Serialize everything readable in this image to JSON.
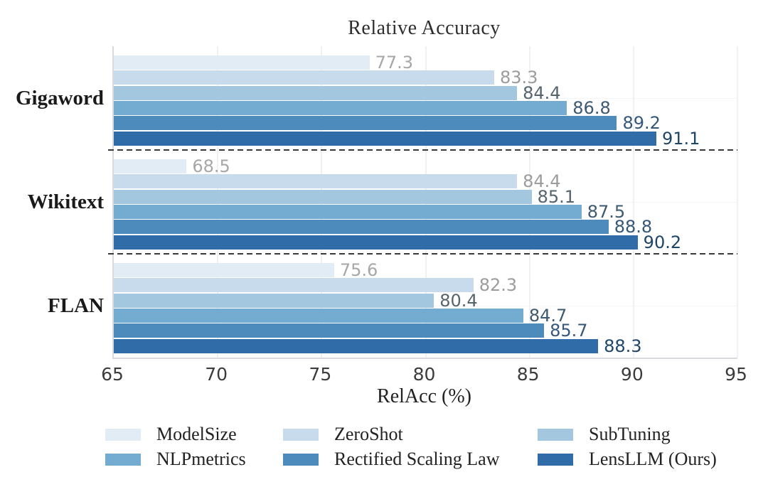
{
  "chart_data": {
    "type": "bar",
    "orientation": "horizontal",
    "title": "Relative Accuracy",
    "xlabel": "RelAcc (%)",
    "xlim": [
      65,
      95
    ],
    "xticks": [
      65,
      70,
      75,
      80,
      85,
      90,
      95
    ],
    "grid": "on",
    "legend_position": "bottom",
    "categories": [
      "Gigaword",
      "Wikitext",
      "FLAN"
    ],
    "series": [
      {
        "name": "ModelSize",
        "color": "#e2ecf5",
        "label_color": "#a7a7a7",
        "values": [
          77.3,
          68.5,
          75.6
        ]
      },
      {
        "name": "ZeroShot",
        "color": "#c8dbec",
        "label_color": "#9c9c9c",
        "values": [
          83.3,
          84.4,
          82.3
        ]
      },
      {
        "name": "SubTuning",
        "color": "#a3c7df",
        "label_color": "#56646e",
        "values": [
          84.4,
          85.1,
          80.4
        ]
      },
      {
        "name": "NLPmetrics",
        "color": "#73acd0",
        "label_color": "#3e5a70",
        "values": [
          86.8,
          87.5,
          84.7
        ]
      },
      {
        "name": "Rectified Scaling Law",
        "color": "#4e8bbd",
        "label_color": "#35587a",
        "values": [
          89.2,
          88.8,
          85.7
        ]
      },
      {
        "name": "LensLLM (Ours)",
        "color": "#2f6ca8",
        "label_color": "#1f4569",
        "values": [
          91.1,
          90.2,
          88.3
        ]
      }
    ],
    "colors": {
      "grid": "#eff1f4",
      "spine": "#d7dbdf",
      "separator": "#3a3a3a",
      "title": "#2e2e2e",
      "tick": "#3c3c3c"
    }
  }
}
